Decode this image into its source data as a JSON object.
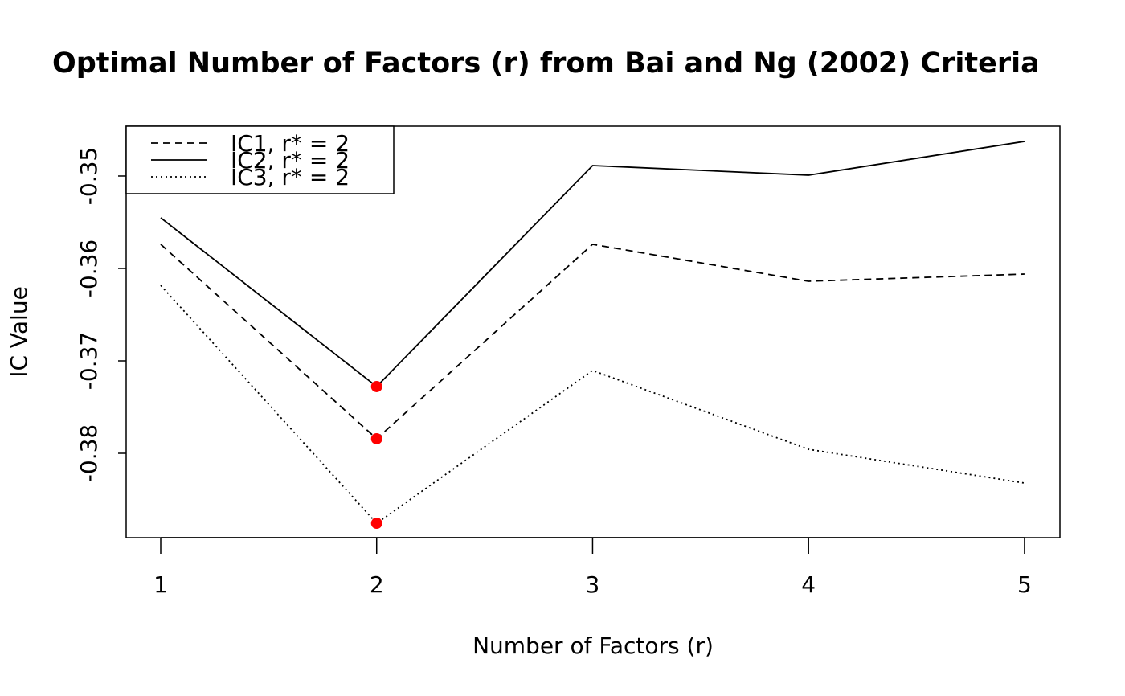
{
  "chart_data": {
    "type": "line",
    "title": "Optimal Number of Factors (r) from Bai and Ng (2002) Criteria",
    "x_label": "Number of Factors (r)",
    "y_label": "IC Value",
    "x": [
      1,
      2,
      3,
      4,
      5
    ],
    "xlim": [
      0.84,
      5.164
    ],
    "ylim": [
      -0.38913,
      -0.34461
    ],
    "xticks": [
      1,
      2,
      3,
      4,
      5
    ],
    "yticks": [
      -0.38,
      -0.37,
      -0.36,
      -0.35
    ],
    "grid": false,
    "legend": "top-left",
    "highlight_color": "#ff0000",
    "series": [
      {
        "name": "IC1, r* = 2",
        "color": "#000000",
        "dash": "dashed",
        "values": [
          -0.35739,
          -0.37843,
          -0.35739,
          -0.36139,
          -0.36061
        ]
      },
      {
        "name": "IC2, r* = 2",
        "color": "#000000",
        "dash": "solid",
        "values": [
          -0.35452,
          -0.37278,
          -0.34887,
          -0.34991,
          -0.34626
        ]
      },
      {
        "name": "IC3, r* = 2",
        "color": "#000000",
        "dash": "dotted",
        "values": [
          -0.36183,
          -0.38757,
          -0.37104,
          -0.37957,
          -0.38322
        ]
      }
    ]
  }
}
